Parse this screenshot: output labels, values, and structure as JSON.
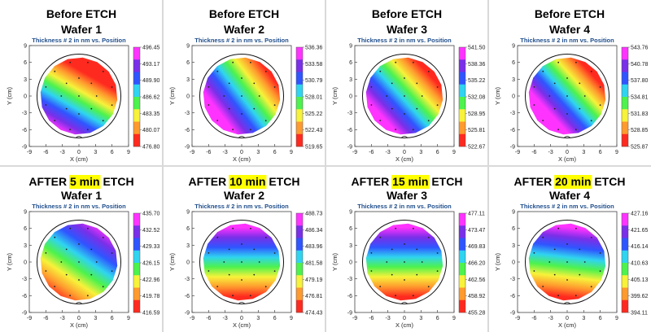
{
  "figure": {
    "subtitle": "Thickness # 2 in nm vs. Position",
    "xlabel": "X (cm)",
    "ylabel": "Y (cm)"
  },
  "chart_data": [
    {
      "type": "heatmap",
      "title_line1": "Before ETCH",
      "title_line2": "Wafer 1",
      "title_parts": [],
      "subtitle": "Thickness # 2 in nm vs. Position",
      "xlabel": "X (cm)",
      "ylabel": "Y (cm)",
      "xlim": [
        -9,
        9
      ],
      "ylim": [
        -9,
        9
      ],
      "xticks": [
        "-9",
        "-6",
        "-3",
        "0",
        "3",
        "6",
        "9"
      ],
      "yticks": [
        "9",
        "6",
        "3",
        "0",
        "-3",
        "-6",
        "-9"
      ],
      "colorbar_ticks": [
        "496.45",
        "493.17",
        "489.90",
        "486.62",
        "483.35",
        "480.07",
        "476.80"
      ],
      "colorscale": [
        "#ff33ff",
        "#7a2fe8",
        "#2f55ff",
        "#2fd4f0",
        "#4df24d",
        "#f7f23a",
        "#ff9a2e",
        "#ff2a1f"
      ]
    },
    {
      "type": "heatmap",
      "title_line1": "Before ETCH",
      "title_line2": "Wafer 2",
      "title_parts": [],
      "subtitle": "Thickness # 2 in nm vs. Position",
      "xlabel": "X (cm)",
      "ylabel": "Y (cm)",
      "xlim": [
        -9,
        9
      ],
      "ylim": [
        -9,
        9
      ],
      "xticks": [
        "-9",
        "-6",
        "-3",
        "0",
        "3",
        "6",
        "9"
      ],
      "yticks": [
        "9",
        "6",
        "3",
        "0",
        "-3",
        "-6",
        "-9"
      ],
      "colorbar_ticks": [
        "536.36",
        "533.58",
        "530.79",
        "528.01",
        "525.22",
        "522.43",
        "519.65"
      ],
      "colorscale": [
        "#ff33ff",
        "#7a2fe8",
        "#2f55ff",
        "#2fd4f0",
        "#4df24d",
        "#f7f23a",
        "#ff9a2e",
        "#ff2a1f"
      ]
    },
    {
      "type": "heatmap",
      "title_line1": "Before ETCH",
      "title_line2": "Wafer 3",
      "title_parts": [],
      "subtitle": "Thickness # 2 in nm vs. Position",
      "xlabel": "X (cm)",
      "ylabel": "Y (cm)",
      "xlim": [
        -9,
        9
      ],
      "ylim": [
        -9,
        9
      ],
      "xticks": [
        "-9",
        "-6",
        "-3",
        "0",
        "3",
        "6",
        "9"
      ],
      "yticks": [
        "9",
        "6",
        "3",
        "0",
        "-3",
        "-6",
        "-9"
      ],
      "colorbar_ticks": [
        "541.50",
        "538.36",
        "535.22",
        "532.08",
        "528.95",
        "525.81",
        "522.67"
      ],
      "colorscale": [
        "#ff33ff",
        "#7a2fe8",
        "#2f55ff",
        "#2fd4f0",
        "#4df24d",
        "#f7f23a",
        "#ff9a2e",
        "#ff2a1f"
      ]
    },
    {
      "type": "heatmap",
      "title_line1": "Before ETCH",
      "title_line2": "Wafer 4",
      "title_parts": [],
      "subtitle": "Thickness # 2 in nm vs. Position",
      "xlabel": "X (cm)",
      "ylabel": "Y (cm)",
      "xlim": [
        -9,
        9
      ],
      "ylim": [
        -9,
        9
      ],
      "xticks": [
        "-9",
        "-6",
        "-3",
        "0",
        "3",
        "6",
        "9"
      ],
      "yticks": [
        "9",
        "6",
        "3",
        "0",
        "-3",
        "-6",
        "-9"
      ],
      "colorbar_ticks": [
        "543.76",
        "540.78",
        "537.80",
        "534.81",
        "531.83",
        "528.85",
        "525.87"
      ],
      "colorscale": [
        "#ff33ff",
        "#7a2fe8",
        "#2f55ff",
        "#2fd4f0",
        "#4df24d",
        "#f7f23a",
        "#ff9a2e",
        "#ff2a1f"
      ]
    },
    {
      "type": "heatmap",
      "title_line1": "",
      "title_line2": "Wafer 1",
      "title_parts": [
        {
          "text": "AFTER ",
          "hl": false
        },
        {
          "text": "5 min",
          "hl": true
        },
        {
          "text": " ETCH",
          "hl": false
        }
      ],
      "subtitle": "Thickness # 2 in nm vs. Position",
      "xlabel": "X (cm)",
      "ylabel": "Y (cm)",
      "xlim": [
        -9,
        9
      ],
      "ylim": [
        -9,
        9
      ],
      "xticks": [
        "-9",
        "-6",
        "-3",
        "0",
        "3",
        "6",
        "9"
      ],
      "yticks": [
        "9",
        "6",
        "3",
        "0",
        "-3",
        "-6",
        "-9"
      ],
      "colorbar_ticks": [
        "435.70",
        "432.52",
        "429.33",
        "426.15",
        "422.96",
        "419.78",
        "416.59"
      ],
      "colorscale": [
        "#ff33ff",
        "#7a2fe8",
        "#2f55ff",
        "#2fd4f0",
        "#4df24d",
        "#f7f23a",
        "#ff9a2e",
        "#ff2a1f"
      ]
    },
    {
      "type": "heatmap",
      "title_line1": "",
      "title_line2": "Wafer 2",
      "title_parts": [
        {
          "text": "AFTER ",
          "hl": false
        },
        {
          "text": "10 min",
          "hl": true
        },
        {
          "text": " ETCH",
          "hl": false
        }
      ],
      "subtitle": "Thickness # 2 in nm vs. Position",
      "xlabel": "X (cm)",
      "ylabel": "Y (cm)",
      "xlim": [
        -9,
        9
      ],
      "ylim": [
        -9,
        9
      ],
      "xticks": [
        "-9",
        "-6",
        "-3",
        "0",
        "3",
        "6",
        "9"
      ],
      "yticks": [
        "9",
        "6",
        "3",
        "0",
        "-3",
        "-6",
        "-9"
      ],
      "colorbar_ticks": [
        "488.73",
        "486.34",
        "483.96",
        "481.58",
        "479.19",
        "476.81",
        "474.43"
      ],
      "colorscale": [
        "#ff33ff",
        "#7a2fe8",
        "#2f55ff",
        "#2fd4f0",
        "#4df24d",
        "#f7f23a",
        "#ff9a2e",
        "#ff2a1f"
      ]
    },
    {
      "type": "heatmap",
      "title_line1": "",
      "title_line2": "Wafer 3",
      "title_parts": [
        {
          "text": "AFTER ",
          "hl": false
        },
        {
          "text": "15 min",
          "hl": true
        },
        {
          "text": " ETCH",
          "hl": false
        }
      ],
      "subtitle": "Thickness # 2 in nm vs. Position",
      "xlabel": "X (cm)",
      "ylabel": "Y (cm)",
      "xlim": [
        -9,
        9
      ],
      "ylim": [
        -9,
        9
      ],
      "xticks": [
        "-9",
        "-6",
        "-3",
        "0",
        "3",
        "6",
        "9"
      ],
      "yticks": [
        "9",
        "6",
        "3",
        "0",
        "-3",
        "-6",
        "-9"
      ],
      "colorbar_ticks": [
        "477.11",
        "473.47",
        "469.83",
        "466.20",
        "462.56",
        "458.92",
        "455.28"
      ],
      "colorscale": [
        "#ff33ff",
        "#7a2fe8",
        "#2f55ff",
        "#2fd4f0",
        "#4df24d",
        "#f7f23a",
        "#ff9a2e",
        "#ff2a1f"
      ]
    },
    {
      "type": "heatmap",
      "title_line1": "",
      "title_line2": "Wafer 4",
      "title_parts": [
        {
          "text": "AFTER ",
          "hl": false
        },
        {
          "text": "20 min",
          "hl": true
        },
        {
          "text": " ETCH",
          "hl": false
        }
      ],
      "subtitle": "Thickness # 2 in nm vs. Position",
      "xlabel": "X (cm)",
      "ylabel": "Y (cm)",
      "xlim": [
        -9,
        9
      ],
      "ylim": [
        -9,
        9
      ],
      "xticks": [
        "-9",
        "-6",
        "-3",
        "0",
        "3",
        "6",
        "9"
      ],
      "yticks": [
        "9",
        "6",
        "3",
        "0",
        "-3",
        "-6",
        "-9"
      ],
      "colorbar_ticks": [
        "427.16",
        "421.65",
        "416.14",
        "410.63",
        "405.13",
        "399.62",
        "394.11"
      ],
      "colorscale": [
        "#ff33ff",
        "#7a2fe8",
        "#2f55ff",
        "#2fd4f0",
        "#4df24d",
        "#f7f23a",
        "#ff9a2e",
        "#ff2a1f"
      ]
    }
  ]
}
